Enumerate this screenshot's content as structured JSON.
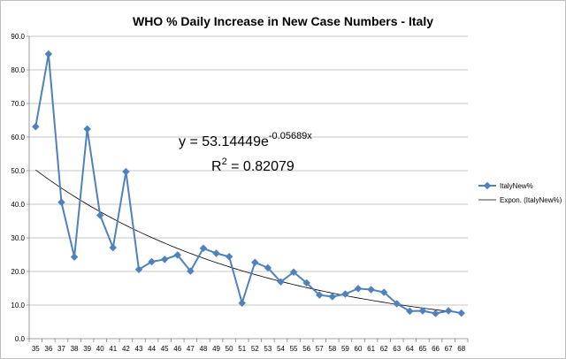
{
  "chart_data": {
    "type": "line",
    "title": "WHO % Daily Increase in New Case Numbers - Italy",
    "x": [
      "35",
      "36",
      "37",
      "38",
      "39",
      "40",
      "41",
      "42",
      "43",
      "44",
      "45",
      "46",
      "47",
      "48",
      "49",
      "50",
      "51",
      "52",
      "53",
      "54",
      "55",
      "56",
      "57",
      "58",
      "59",
      "60",
      "61",
      "62",
      "63",
      "64",
      "65",
      "66",
      "67",
      "68"
    ],
    "series": [
      {
        "name": "ItalyNew%",
        "color": "#4f81bd",
        "values": [
          63.1,
          84.7,
          40.6,
          24.3,
          62.4,
          36.7,
          27.1,
          49.7,
          20.6,
          22.9,
          23.6,
          24.9,
          20.1,
          26.9,
          25.4,
          24.4,
          10.6,
          22.7,
          21.1,
          16.9,
          19.8,
          16.6,
          13.0,
          12.5,
          13.3,
          14.9,
          14.6,
          13.8,
          10.4,
          8.2,
          8.3,
          7.5,
          8.3,
          7.6
        ]
      }
    ],
    "trendline": {
      "name": "Expon. (ItalyNew%)",
      "type": "exponential",
      "a": 53.14449,
      "b": -0.05689,
      "color": "#000000",
      "equation_main": "y = 53.14449e",
      "equation_exp": "-0.05689x",
      "r2_label": "R",
      "r2_value": " = 0.82079"
    },
    "ylim": [
      0,
      90
    ],
    "yticks": [
      "0.0",
      "10.0",
      "20.0",
      "30.0",
      "40.0",
      "50.0",
      "60.0",
      "70.0",
      "80.0",
      "90.0"
    ],
    "grid": true,
    "legend_position": "right",
    "xlabel": "",
    "ylabel": ""
  }
}
